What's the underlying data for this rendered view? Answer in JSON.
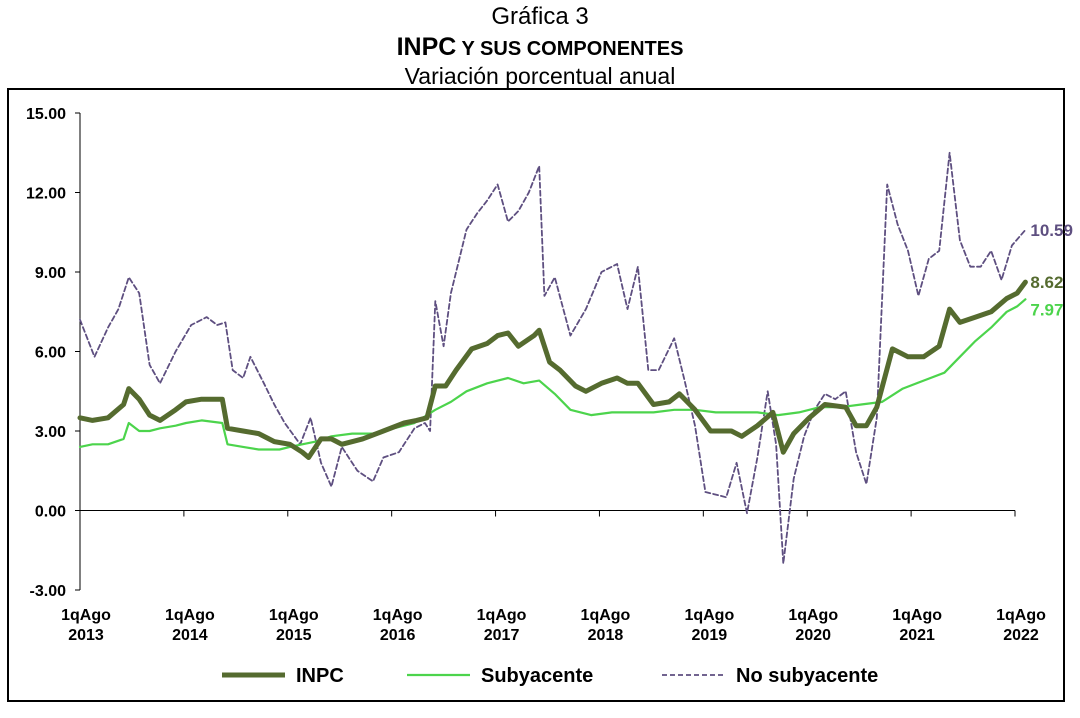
{
  "header": {
    "figure_label": "Gráfica 3",
    "title_main": "INPC",
    "title_rest": " Y SUS COMPONENTES",
    "subtitle": "Variación porcentual anual"
  },
  "colors": {
    "inpc": "#556b2f",
    "subyacente": "#4cd44c",
    "no_subyacente": "#5e4f80"
  },
  "chart_data": {
    "type": "line",
    "title": "INPC Y SUS COMPONENTES",
    "subtitle": "Variación porcentual anual",
    "ylim": [
      -3,
      15
    ],
    "yticks": [
      "15.00",
      "12.00",
      "9.00",
      "6.00",
      "3.00",
      "0.00",
      "-3.00"
    ],
    "ytick_values": [
      15,
      12,
      9,
      6,
      3,
      0,
      -3
    ],
    "x_tick_labels": [
      [
        "1qAgo",
        "2013"
      ],
      [
        "1qAgo",
        "2014"
      ],
      [
        "1qAgo",
        "2015"
      ],
      [
        "1qAgo",
        "2016"
      ],
      [
        "1qAgo",
        "2017"
      ],
      [
        "1qAgo",
        "2018"
      ],
      [
        "1qAgo",
        "2019"
      ],
      [
        "1qAgo",
        "2020"
      ],
      [
        "1qAgo",
        "2021"
      ],
      [
        "1qAgo",
        "2022"
      ]
    ],
    "x_tick_values": [
      2013.58,
      2014.58,
      2015.58,
      2016.58,
      2017.58,
      2018.58,
      2019.58,
      2020.58,
      2021.58,
      2022.58
    ],
    "grid": false,
    "legend_position": "bottom",
    "series": [
      {
        "name": "INPC",
        "end_label": "8.62",
        "points": [
          [
            2013.58,
            3.5
          ],
          [
            2013.7,
            3.4
          ],
          [
            2013.85,
            3.5
          ],
          [
            2014.0,
            4.0
          ],
          [
            2014.05,
            4.6
          ],
          [
            2014.15,
            4.2
          ],
          [
            2014.25,
            3.6
          ],
          [
            2014.35,
            3.4
          ],
          [
            2014.5,
            3.8
          ],
          [
            2014.6,
            4.1
          ],
          [
            2014.75,
            4.2
          ],
          [
            2014.95,
            4.2
          ],
          [
            2015.0,
            3.1
          ],
          [
            2015.15,
            3.0
          ],
          [
            2015.3,
            2.9
          ],
          [
            2015.45,
            2.6
          ],
          [
            2015.6,
            2.5
          ],
          [
            2015.72,
            2.2
          ],
          [
            2015.78,
            2.0
          ],
          [
            2015.9,
            2.7
          ],
          [
            2016.0,
            2.7
          ],
          [
            2016.1,
            2.5
          ],
          [
            2016.3,
            2.7
          ],
          [
            2016.5,
            3.0
          ],
          [
            2016.7,
            3.3
          ],
          [
            2016.82,
            3.4
          ],
          [
            2016.92,
            3.5
          ],
          [
            2017.0,
            4.7
          ],
          [
            2017.1,
            4.7
          ],
          [
            2017.2,
            5.3
          ],
          [
            2017.35,
            6.1
          ],
          [
            2017.5,
            6.3
          ],
          [
            2017.6,
            6.6
          ],
          [
            2017.7,
            6.7
          ],
          [
            2017.8,
            6.2
          ],
          [
            2017.95,
            6.6
          ],
          [
            2018.0,
            6.8
          ],
          [
            2018.1,
            5.6
          ],
          [
            2018.2,
            5.3
          ],
          [
            2018.35,
            4.7
          ],
          [
            2018.45,
            4.5
          ],
          [
            2018.6,
            4.8
          ],
          [
            2018.75,
            5.0
          ],
          [
            2018.85,
            4.8
          ],
          [
            2018.95,
            4.8
          ],
          [
            2019.1,
            4.0
          ],
          [
            2019.25,
            4.1
          ],
          [
            2019.35,
            4.4
          ],
          [
            2019.5,
            3.8
          ],
          [
            2019.65,
            3.0
          ],
          [
            2019.75,
            3.0
          ],
          [
            2019.85,
            3.0
          ],
          [
            2019.95,
            2.8
          ],
          [
            2020.1,
            3.2
          ],
          [
            2020.25,
            3.7
          ],
          [
            2020.35,
            2.2
          ],
          [
            2020.45,
            2.9
          ],
          [
            2020.6,
            3.5
          ],
          [
            2020.75,
            4.0
          ],
          [
            2020.95,
            3.9
          ],
          [
            2021.05,
            3.2
          ],
          [
            2021.15,
            3.2
          ],
          [
            2021.25,
            3.9
          ],
          [
            2021.4,
            6.1
          ],
          [
            2021.55,
            5.8
          ],
          [
            2021.7,
            5.8
          ],
          [
            2021.85,
            6.2
          ],
          [
            2021.95,
            7.6
          ],
          [
            2022.05,
            7.1
          ],
          [
            2022.2,
            7.3
          ],
          [
            2022.35,
            7.5
          ],
          [
            2022.5,
            8.0
          ],
          [
            2022.6,
            8.2
          ],
          [
            2022.68,
            8.62
          ]
        ]
      },
      {
        "name": "Subyacente",
        "end_label": "7.97",
        "points": [
          [
            2013.58,
            2.4
          ],
          [
            2013.7,
            2.5
          ],
          [
            2013.85,
            2.5
          ],
          [
            2014.0,
            2.7
          ],
          [
            2014.05,
            3.3
          ],
          [
            2014.15,
            3.0
          ],
          [
            2014.25,
            3.0
          ],
          [
            2014.35,
            3.1
          ],
          [
            2014.5,
            3.2
          ],
          [
            2014.6,
            3.3
          ],
          [
            2014.75,
            3.4
          ],
          [
            2014.95,
            3.3
          ],
          [
            2015.0,
            2.5
          ],
          [
            2015.15,
            2.4
          ],
          [
            2015.3,
            2.3
          ],
          [
            2015.5,
            2.3
          ],
          [
            2015.6,
            2.4
          ],
          [
            2015.72,
            2.5
          ],
          [
            2015.85,
            2.6
          ],
          [
            2016.0,
            2.8
          ],
          [
            2016.2,
            2.9
          ],
          [
            2016.4,
            2.9
          ],
          [
            2016.6,
            3.1
          ],
          [
            2016.8,
            3.3
          ],
          [
            2017.0,
            3.8
          ],
          [
            2017.15,
            4.1
          ],
          [
            2017.3,
            4.5
          ],
          [
            2017.5,
            4.8
          ],
          [
            2017.7,
            5.0
          ],
          [
            2017.85,
            4.8
          ],
          [
            2018.0,
            4.9
          ],
          [
            2018.15,
            4.4
          ],
          [
            2018.3,
            3.8
          ],
          [
            2018.5,
            3.6
          ],
          [
            2018.7,
            3.7
          ],
          [
            2018.9,
            3.7
          ],
          [
            2019.1,
            3.7
          ],
          [
            2019.3,
            3.8
          ],
          [
            2019.5,
            3.8
          ],
          [
            2019.7,
            3.7
          ],
          [
            2019.9,
            3.7
          ],
          [
            2020.1,
            3.7
          ],
          [
            2020.3,
            3.6
          ],
          [
            2020.5,
            3.7
          ],
          [
            2020.7,
            3.9
          ],
          [
            2020.9,
            3.9
          ],
          [
            2021.1,
            4.0
          ],
          [
            2021.3,
            4.1
          ],
          [
            2021.5,
            4.6
          ],
          [
            2021.7,
            4.9
          ],
          [
            2021.9,
            5.2
          ],
          [
            2022.05,
            5.8
          ],
          [
            2022.2,
            6.4
          ],
          [
            2022.35,
            6.9
          ],
          [
            2022.5,
            7.5
          ],
          [
            2022.6,
            7.7
          ],
          [
            2022.68,
            7.97
          ]
        ]
      },
      {
        "name": "No subyacente",
        "end_label": "10.59",
        "points": [
          [
            2013.58,
            7.2
          ],
          [
            2013.72,
            5.8
          ],
          [
            2013.85,
            6.9
          ],
          [
            2013.95,
            7.6
          ],
          [
            2014.05,
            8.8
          ],
          [
            2014.15,
            8.2
          ],
          [
            2014.25,
            5.5
          ],
          [
            2014.35,
            4.8
          ],
          [
            2014.5,
            6.0
          ],
          [
            2014.65,
            7.0
          ],
          [
            2014.8,
            7.3
          ],
          [
            2014.9,
            7.0
          ],
          [
            2014.98,
            7.1
          ],
          [
            2015.05,
            5.3
          ],
          [
            2015.15,
            5.0
          ],
          [
            2015.22,
            5.8
          ],
          [
            2015.35,
            4.8
          ],
          [
            2015.45,
            4.0
          ],
          [
            2015.55,
            3.3
          ],
          [
            2015.7,
            2.5
          ],
          [
            2015.8,
            3.5
          ],
          [
            2015.9,
            1.8
          ],
          [
            2016.0,
            0.9
          ],
          [
            2016.1,
            2.4
          ],
          [
            2016.25,
            1.5
          ],
          [
            2016.4,
            1.1
          ],
          [
            2016.5,
            2.0
          ],
          [
            2016.65,
            2.2
          ],
          [
            2016.8,
            3.1
          ],
          [
            2016.9,
            3.3
          ],
          [
            2016.95,
            3.0
          ],
          [
            2017.0,
            7.9
          ],
          [
            2017.08,
            6.2
          ],
          [
            2017.15,
            8.2
          ],
          [
            2017.3,
            10.6
          ],
          [
            2017.4,
            11.2
          ],
          [
            2017.5,
            11.7
          ],
          [
            2017.6,
            12.3
          ],
          [
            2017.7,
            10.9
          ],
          [
            2017.8,
            11.3
          ],
          [
            2017.9,
            12.0
          ],
          [
            2018.0,
            13.0
          ],
          [
            2018.05,
            8.1
          ],
          [
            2018.15,
            8.8
          ],
          [
            2018.3,
            6.6
          ],
          [
            2018.45,
            7.6
          ],
          [
            2018.6,
            9.0
          ],
          [
            2018.75,
            9.3
          ],
          [
            2018.85,
            7.6
          ],
          [
            2018.95,
            9.2
          ],
          [
            2019.05,
            5.3
          ],
          [
            2019.15,
            5.3
          ],
          [
            2019.3,
            6.5
          ],
          [
            2019.4,
            4.9
          ],
          [
            2019.5,
            3.2
          ],
          [
            2019.6,
            0.7
          ],
          [
            2019.7,
            0.6
          ],
          [
            2019.8,
            0.5
          ],
          [
            2019.9,
            1.8
          ],
          [
            2020.0,
            -0.1
          ],
          [
            2020.1,
            2.0
          ],
          [
            2020.2,
            4.5
          ],
          [
            2020.28,
            2.5
          ],
          [
            2020.35,
            -2.0
          ],
          [
            2020.45,
            1.2
          ],
          [
            2020.55,
            2.8
          ],
          [
            2020.65,
            3.8
          ],
          [
            2020.75,
            4.4
          ],
          [
            2020.85,
            4.2
          ],
          [
            2020.95,
            4.5
          ],
          [
            2021.05,
            2.2
          ],
          [
            2021.15,
            1.0
          ],
          [
            2021.25,
            3.5
          ],
          [
            2021.35,
            12.3
          ],
          [
            2021.45,
            10.8
          ],
          [
            2021.55,
            9.8
          ],
          [
            2021.65,
            8.1
          ],
          [
            2021.75,
            9.5
          ],
          [
            2021.85,
            9.8
          ],
          [
            2021.95,
            13.5
          ],
          [
            2022.05,
            10.2
          ],
          [
            2022.15,
            9.2
          ],
          [
            2022.25,
            9.2
          ],
          [
            2022.35,
            9.8
          ],
          [
            2022.45,
            8.7
          ],
          [
            2022.55,
            10.0
          ],
          [
            2022.68,
            10.59
          ]
        ]
      }
    ]
  }
}
